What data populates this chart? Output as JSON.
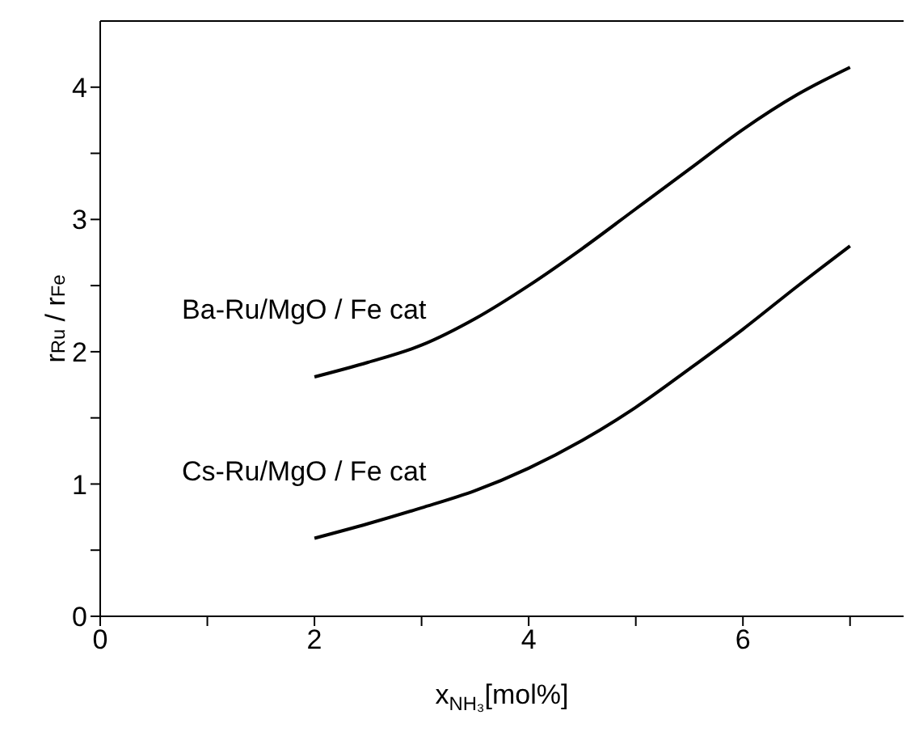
{
  "chart_data": {
    "type": "line",
    "xlabel": "x$_{NH₃}$[mol%]",
    "ylabel": "r$_{Ru}$ / r$_{Fe}$",
    "xlim": [
      0,
      7.5
    ],
    "xticks": [
      0,
      {
        "value": 1,
        "label": null
      },
      2,
      {
        "value": 3,
        "label": null
      },
      4,
      {
        "value": 5,
        "label": null
      },
      6,
      {
        "value": 7,
        "label": null
      }
    ],
    "ylim": [
      0,
      4.5
    ],
    "yticks": [
      0,
      {
        "value": 0.5,
        "label": null
      },
      1,
      {
        "value": 1.5,
        "label": null
      },
      2,
      {
        "value": 2.5,
        "label": null
      },
      3,
      {
        "value": 3.5,
        "label": null
      },
      4
    ],
    "grid": false,
    "legend": false,
    "marker": "none",
    "line_style": "solid",
    "x": [
      2,
      2.5,
      3,
      3.5,
      4,
      4.5,
      5,
      5.5,
      6,
      6.5,
      7
    ],
    "series": [
      {
        "name": "Ba-Ru/MgO / Fe cat",
        "color": "#000000",
        "values": [
          1.81,
          1.92,
          2.05,
          2.25,
          2.5,
          2.78,
          3.08,
          3.38,
          3.68,
          3.94,
          4.15
        ]
      },
      {
        "name": "Cs-Ru/MgO / Fe cat",
        "color": "#000000",
        "values": [
          0.59,
          0.7,
          0.82,
          0.95,
          1.12,
          1.33,
          1.58,
          1.87,
          2.17,
          2.49,
          2.8
        ]
      }
    ]
  }
}
